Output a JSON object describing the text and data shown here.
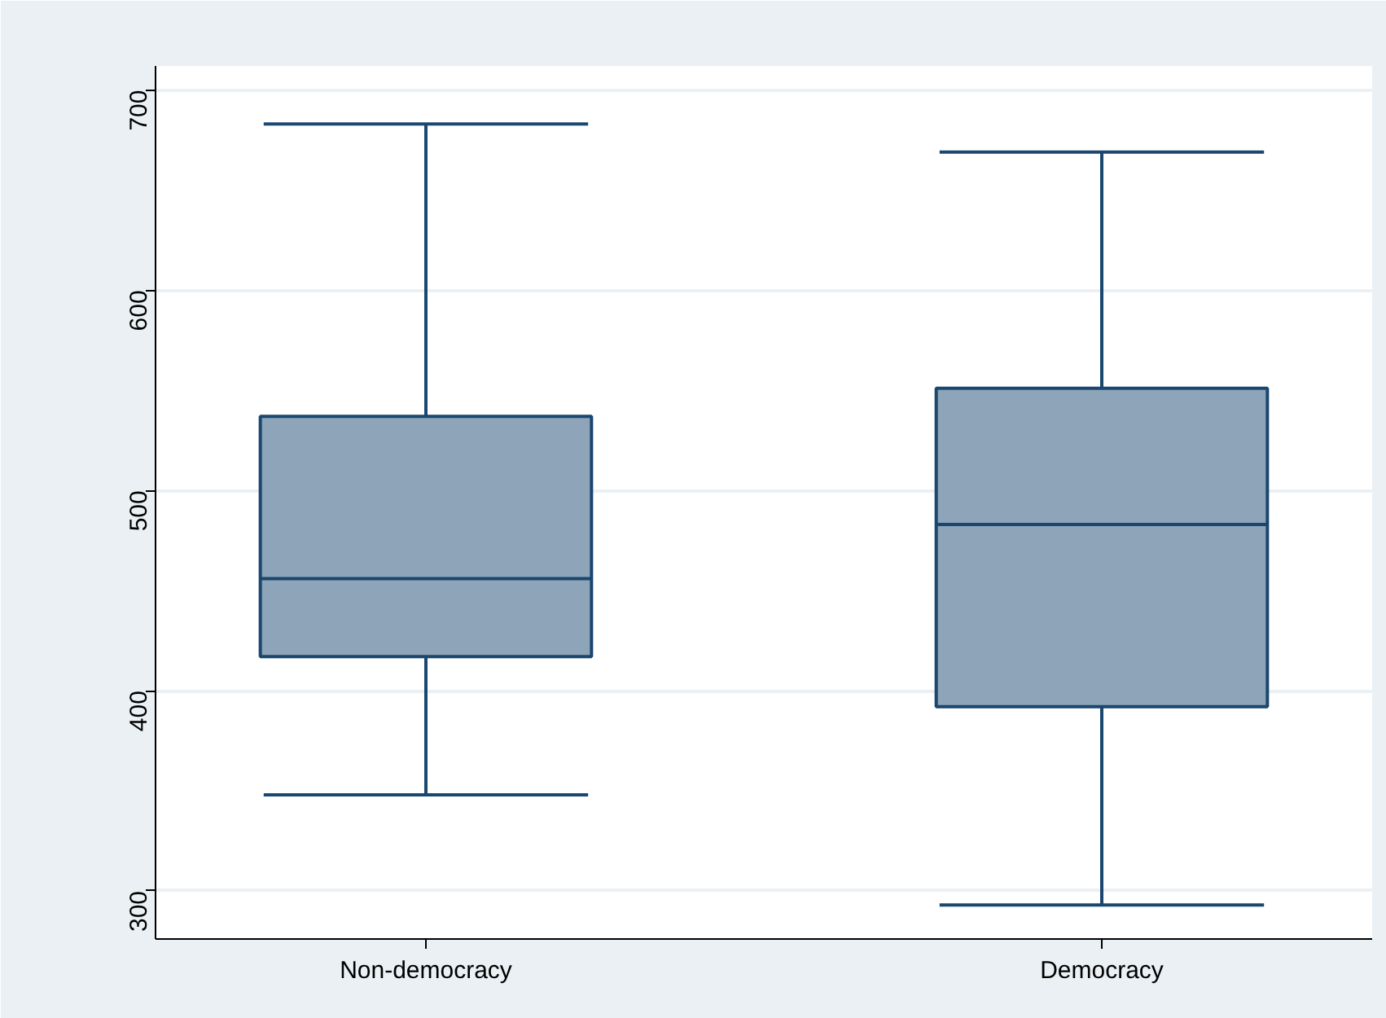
{
  "chart_data": {
    "type": "box",
    "categories": [
      "Non-democracy",
      "Democracy"
    ],
    "boxes": [
      {
        "low": 348,
        "q1": 417,
        "median": 456,
        "q3": 537,
        "high": 683
      },
      {
        "low": 293,
        "q1": 392,
        "median": 483,
        "q3": 551,
        "high": 669
      }
    ],
    "color": "#8ea4b8",
    "ylim": [
      276,
      712
    ],
    "yticks": [
      300,
      400,
      500,
      600,
      700
    ],
    "grid": "y"
  }
}
